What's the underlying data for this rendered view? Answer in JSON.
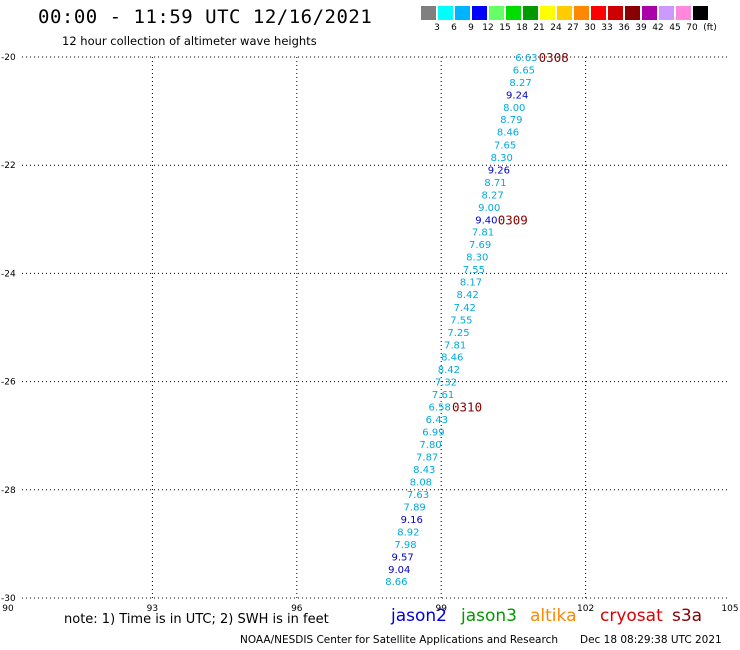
{
  "header": {
    "title": "00:00 - 11:59 UTC 12/16/2021",
    "subtitle": "12 hour collection of altimeter wave heights"
  },
  "color_scale": {
    "unit_label": "(ft)",
    "bins": [
      {
        "label": "3",
        "color": "#808080"
      },
      {
        "label": "6",
        "color": "#00ffff"
      },
      {
        "label": "9",
        "color": "#00b4ff"
      },
      {
        "label": "12",
        "color": "#0000ff"
      },
      {
        "label": "15",
        "color": "#66ff66"
      },
      {
        "label": "18",
        "color": "#00dd00"
      },
      {
        "label": "21",
        "color": "#009900"
      },
      {
        "label": "24",
        "color": "#ffff00"
      },
      {
        "label": "27",
        "color": "#ffcc00"
      },
      {
        "label": "30",
        "color": "#ff8800"
      },
      {
        "label": "33",
        "color": "#ff0000"
      },
      {
        "label": "36",
        "color": "#cc0000"
      },
      {
        "label": "39",
        "color": "#880000"
      },
      {
        "label": "42",
        "color": "#aa00aa"
      },
      {
        "label": "45",
        "color": "#cc99ff"
      },
      {
        "label": "70",
        "color": "#ff88dd"
      },
      {
        "label": "",
        "color": "#000000"
      }
    ]
  },
  "chart_data": {
    "type": "scatter",
    "xlim": [
      90,
      105
    ],
    "ylim": [
      -30,
      -20
    ],
    "x_ticks": [
      "90",
      "93",
      "96",
      "99",
      "102",
      "105"
    ],
    "y_ticks": [
      "-20",
      "-22",
      "-24",
      "-26",
      "-28",
      "-30"
    ],
    "grid": true,
    "series": [
      {
        "points": [
          {
            "lon": 101.0,
            "lat": -20.0,
            "swh": "6.63",
            "color": "#00aadd"
          },
          {
            "lon": 100.95,
            "lat": -20.23,
            "swh": "6.65",
            "color": "#00aadd"
          },
          {
            "lon": 100.88,
            "lat": -20.46,
            "swh": "8.27",
            "color": "#00aadd"
          },
          {
            "lon": 100.81,
            "lat": -20.69,
            "swh": "9.24",
            "color": "#0000cc"
          },
          {
            "lon": 100.75,
            "lat": -20.92,
            "swh": "8.00",
            "color": "#00aadd"
          },
          {
            "lon": 100.69,
            "lat": -21.15,
            "swh": "8.79",
            "color": "#00aadd"
          },
          {
            "lon": 100.62,
            "lat": -21.38,
            "swh": "8.46",
            "color": "#00aadd"
          },
          {
            "lon": 100.56,
            "lat": -21.62,
            "swh": "7.65",
            "color": "#00aadd"
          },
          {
            "lon": 100.49,
            "lat": -21.85,
            "swh": "8.30",
            "color": "#00aadd"
          },
          {
            "lon": 100.43,
            "lat": -22.08,
            "swh": "9.26",
            "color": "#0000cc"
          },
          {
            "lon": 100.36,
            "lat": -22.31,
            "swh": "8.71",
            "color": "#00aadd"
          },
          {
            "lon": 100.3,
            "lat": -22.54,
            "swh": "8.27",
            "color": "#00aadd"
          },
          {
            "lon": 100.23,
            "lat": -22.77,
            "swh": "9.00",
            "color": "#00aadd"
          },
          {
            "lon": 100.17,
            "lat": -23.0,
            "swh": "9.40",
            "color": "#0000cc"
          },
          {
            "lon": 100.1,
            "lat": -23.23,
            "swh": "7.81",
            "color": "#00aadd"
          },
          {
            "lon": 100.04,
            "lat": -23.46,
            "swh": "7.69",
            "color": "#00aadd"
          },
          {
            "lon": 99.98,
            "lat": -23.69,
            "swh": "8.30",
            "color": "#00aadd"
          },
          {
            "lon": 99.91,
            "lat": -23.92,
            "swh": "7.55",
            "color": "#00aadd"
          },
          {
            "lon": 99.85,
            "lat": -24.15,
            "swh": "8.17",
            "color": "#00aadd"
          },
          {
            "lon": 99.78,
            "lat": -24.38,
            "swh": "8.42",
            "color": "#00aadd"
          },
          {
            "lon": 99.72,
            "lat": -24.62,
            "swh": "7.42",
            "color": "#00aadd"
          },
          {
            "lon": 99.65,
            "lat": -24.85,
            "swh": "7.55",
            "color": "#00aadd"
          },
          {
            "lon": 99.59,
            "lat": -25.08,
            "swh": "7.25",
            "color": "#00aadd"
          },
          {
            "lon": 99.52,
            "lat": -25.31,
            "swh": "7.81",
            "color": "#00aadd"
          },
          {
            "lon": 99.46,
            "lat": -25.54,
            "swh": "8.46",
            "color": "#00aadd"
          },
          {
            "lon": 99.39,
            "lat": -25.77,
            "swh": "8.42",
            "color": "#00aadd"
          },
          {
            "lon": 99.33,
            "lat": -26.0,
            "swh": "7.32",
            "color": "#00aadd"
          },
          {
            "lon": 99.27,
            "lat": -26.23,
            "swh": "7.61",
            "color": "#00aadd"
          },
          {
            "lon": 99.2,
            "lat": -26.46,
            "swh": "6.58",
            "color": "#00aadd"
          },
          {
            "lon": 99.14,
            "lat": -26.69,
            "swh": "6.43",
            "color": "#00aadd"
          },
          {
            "lon": 99.07,
            "lat": -26.92,
            "swh": "6.99",
            "color": "#00aadd"
          },
          {
            "lon": 99.01,
            "lat": -27.15,
            "swh": "7.80",
            "color": "#00aadd"
          },
          {
            "lon": 98.94,
            "lat": -27.38,
            "swh": "7.87",
            "color": "#00aadd"
          },
          {
            "lon": 98.88,
            "lat": -27.62,
            "swh": "8.43",
            "color": "#00aadd"
          },
          {
            "lon": 98.81,
            "lat": -27.85,
            "swh": "8.08",
            "color": "#00aadd"
          },
          {
            "lon": 98.75,
            "lat": -28.08,
            "swh": "7.63",
            "color": "#00aadd"
          },
          {
            "lon": 98.68,
            "lat": -28.31,
            "swh": "7.89",
            "color": "#00aadd"
          },
          {
            "lon": 98.62,
            "lat": -28.54,
            "swh": "9.16",
            "color": "#0000cc"
          },
          {
            "lon": 98.55,
            "lat": -28.77,
            "swh": "8.92",
            "color": "#00aadd"
          },
          {
            "lon": 98.49,
            "lat": -29.0,
            "swh": "7.98",
            "color": "#00aadd"
          },
          {
            "lon": 98.43,
            "lat": -29.23,
            "swh": "9.57",
            "color": "#0000cc"
          },
          {
            "lon": 98.36,
            "lat": -29.46,
            "swh": "9.04",
            "color": "#0000cc"
          },
          {
            "lon": 98.3,
            "lat": -29.69,
            "swh": "8.66",
            "color": "#00aadd"
          }
        ]
      }
    ],
    "annotations": [
      {
        "text": "0308",
        "lon": 101.65,
        "lat": -20.0,
        "color": "#880000"
      },
      {
        "text": "0309",
        "lon": 100.8,
        "lat": -23.0,
        "color": "#880000"
      },
      {
        "text": "0310",
        "lon": 99.85,
        "lat": -26.46,
        "color": "#880000"
      }
    ]
  },
  "footer": {
    "note": "note: 1) Time is in UTC; 2) SWH is in feet",
    "satellites": [
      {
        "label": "jason2",
        "color": "#0000dd"
      },
      {
        "label": "jason3",
        "color": "#009900"
      },
      {
        "label": "altika",
        "color": "#ff8800"
      },
      {
        "label": "cryosat",
        "color": "#dd0000"
      },
      {
        "label": "s3a",
        "color": "#880000"
      }
    ],
    "credit": "NOAA/NESDIS Center for Satellite Applications and Research",
    "timestamp": "Dec 18 08:29:38 UTC 2021"
  }
}
